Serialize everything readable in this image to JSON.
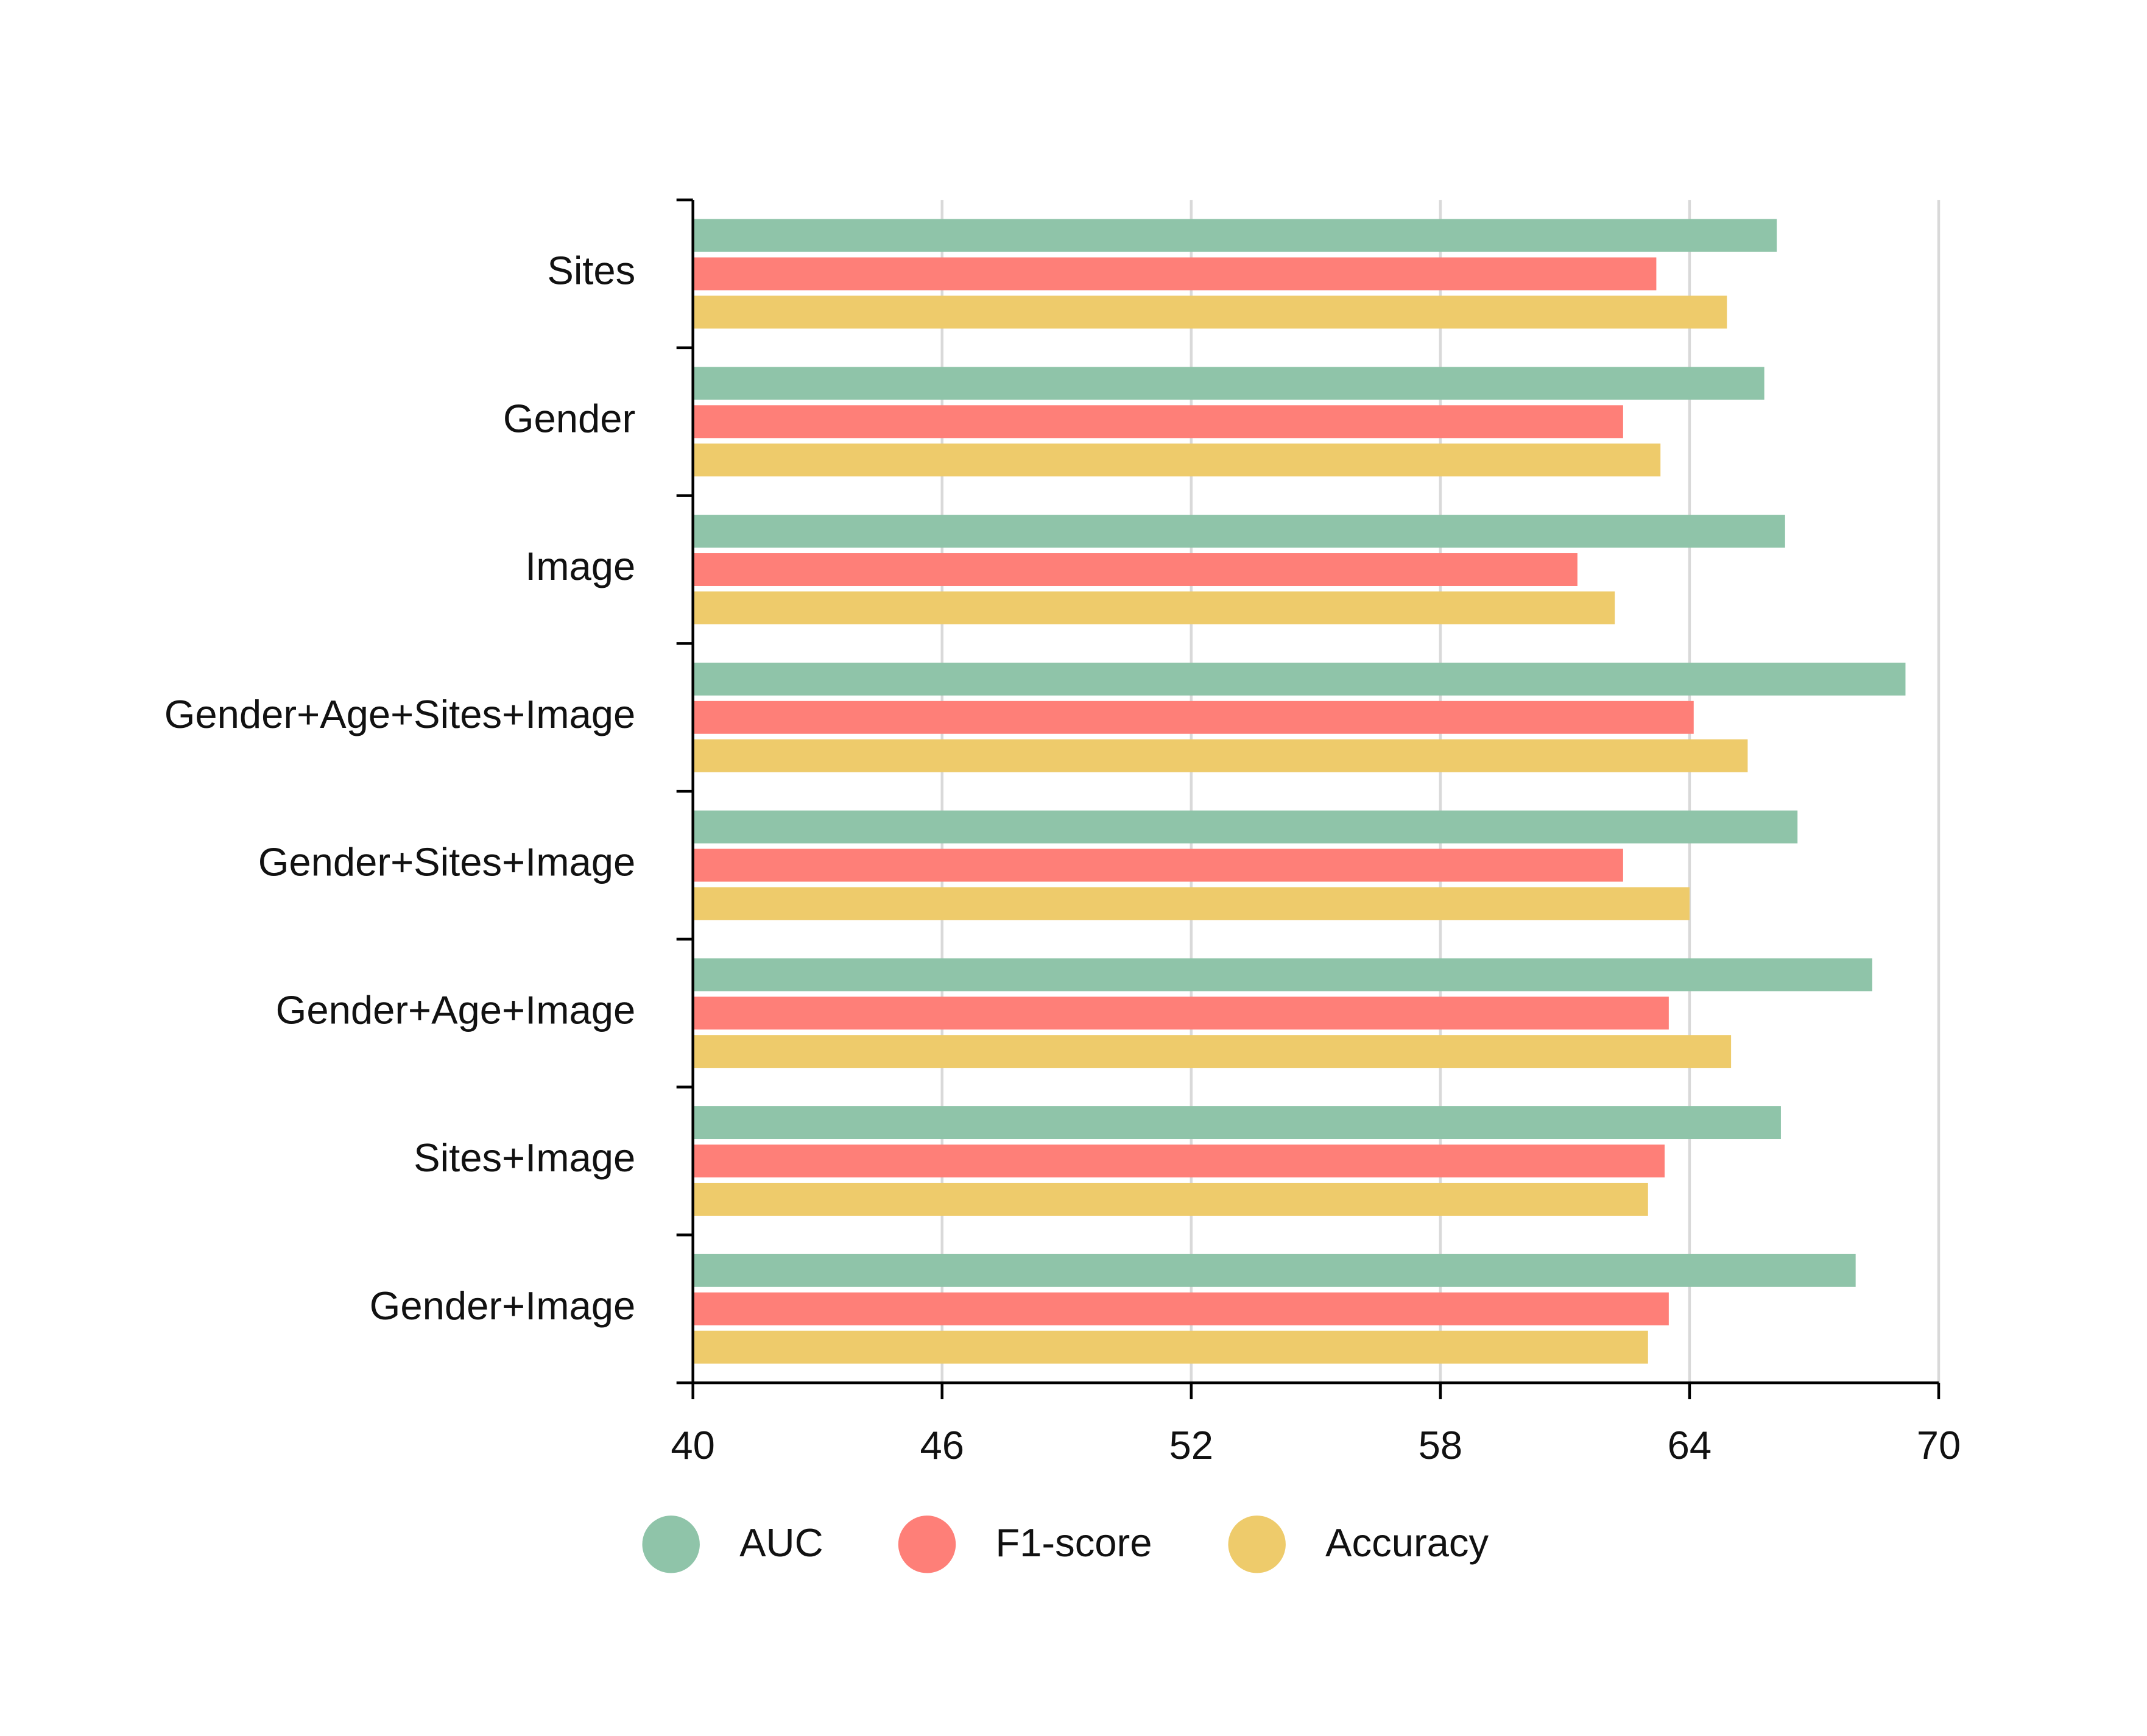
{
  "chart_data": {
    "type": "hbar",
    "categories": [
      "Sites",
      "Gender",
      "Image",
      "Gender+Age+Sites+Image",
      "Gender+Sites+Image",
      "Gender+Age+Image",
      "Sites+Image",
      "Gender+Image"
    ],
    "series": [
      {
        "name": "AUC",
        "color": "#8fc4a9",
        "values": [
          66.1,
          65.8,
          66.3,
          69.2,
          66.6,
          68.4,
          66.2,
          68.0
        ]
      },
      {
        "name": "F1-score",
        "color": "#fe7f78",
        "values": [
          63.2,
          62.4,
          61.3,
          64.1,
          62.4,
          63.5,
          63.4,
          63.5
        ]
      },
      {
        "name": "Accuracy",
        "color": "#eecb6b",
        "values": [
          64.9,
          63.3,
          62.2,
          65.4,
          64.0,
          65.0,
          63.0,
          63.0
        ]
      }
    ],
    "xlim": [
      40,
      70
    ],
    "xticks": [
      40,
      46,
      52,
      58,
      64,
      70
    ],
    "grid": true
  }
}
